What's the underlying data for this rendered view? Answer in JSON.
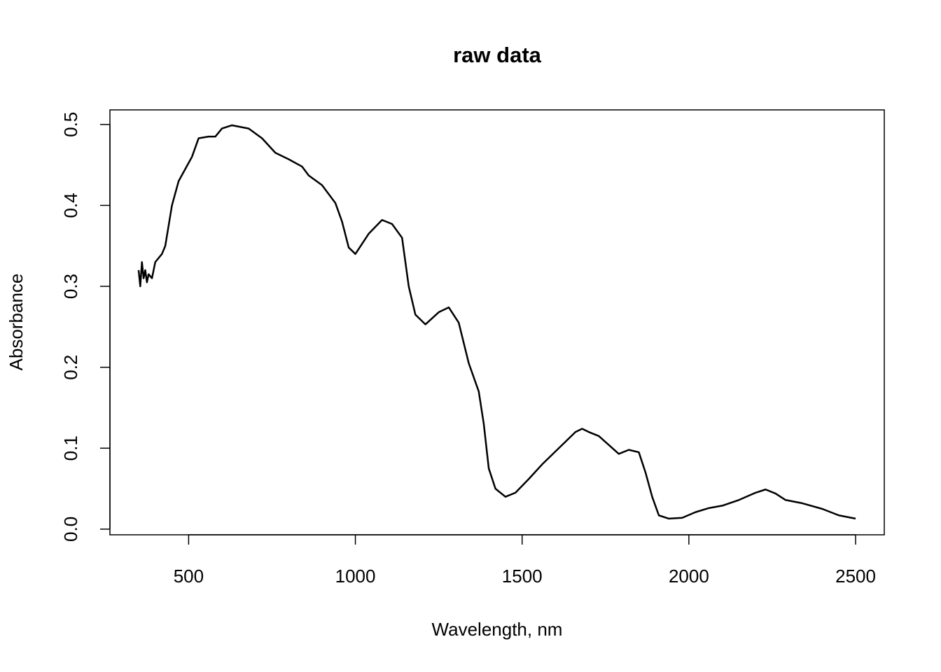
{
  "chart_data": {
    "type": "line",
    "title": "raw data",
    "x_label": "Wavelength, nm",
    "y_label": "Absorbance",
    "x": [
      350,
      355,
      360,
      365,
      370,
      375,
      380,
      390,
      400,
      420,
      430,
      450,
      470,
      490,
      510,
      530,
      560,
      580,
      600,
      630,
      680,
      720,
      760,
      800,
      840,
      860,
      900,
      940,
      960,
      980,
      1000,
      1040,
      1080,
      1110,
      1140,
      1160,
      1180,
      1210,
      1250,
      1280,
      1310,
      1340,
      1370,
      1385,
      1400,
      1420,
      1450,
      1480,
      1520,
      1560,
      1620,
      1660,
      1680,
      1700,
      1730,
      1760,
      1790,
      1820,
      1850,
      1870,
      1890,
      1910,
      1940,
      1980,
      2020,
      2060,
      2100,
      2150,
      2200,
      2230,
      2260,
      2290,
      2340,
      2400,
      2450,
      2500
    ],
    "values": [
      0.32,
      0.3,
      0.33,
      0.31,
      0.32,
      0.305,
      0.315,
      0.31,
      0.33,
      0.34,
      0.35,
      0.4,
      0.43,
      0.445,
      0.46,
      0.483,
      0.485,
      0.485,
      0.495,
      0.499,
      0.495,
      0.483,
      0.465,
      0.457,
      0.448,
      0.437,
      0.425,
      0.403,
      0.38,
      0.348,
      0.34,
      0.365,
      0.382,
      0.377,
      0.36,
      0.3,
      0.265,
      0.253,
      0.268,
      0.274,
      0.255,
      0.205,
      0.17,
      0.13,
      0.075,
      0.05,
      0.04,
      0.045,
      0.062,
      0.08,
      0.104,
      0.12,
      0.124,
      0.12,
      0.115,
      0.104,
      0.093,
      0.098,
      0.095,
      0.07,
      0.04,
      0.017,
      0.013,
      0.014,
      0.021,
      0.026,
      0.029,
      0.036,
      0.045,
      0.049,
      0.044,
      0.036,
      0.032,
      0.025,
      0.017,
      0.013
    ],
    "color": "#000000",
    "xlim": [
      264,
      2586
    ],
    "xticks": [
      500,
      1000,
      1500,
      2000,
      2500
    ],
    "ylim": [
      -0.007,
      0.518
    ],
    "yticks": [
      {
        "value": 0,
        "label": "0.0"
      },
      0.1,
      0.2,
      0.3,
      0.4,
      0.5
    ]
  }
}
